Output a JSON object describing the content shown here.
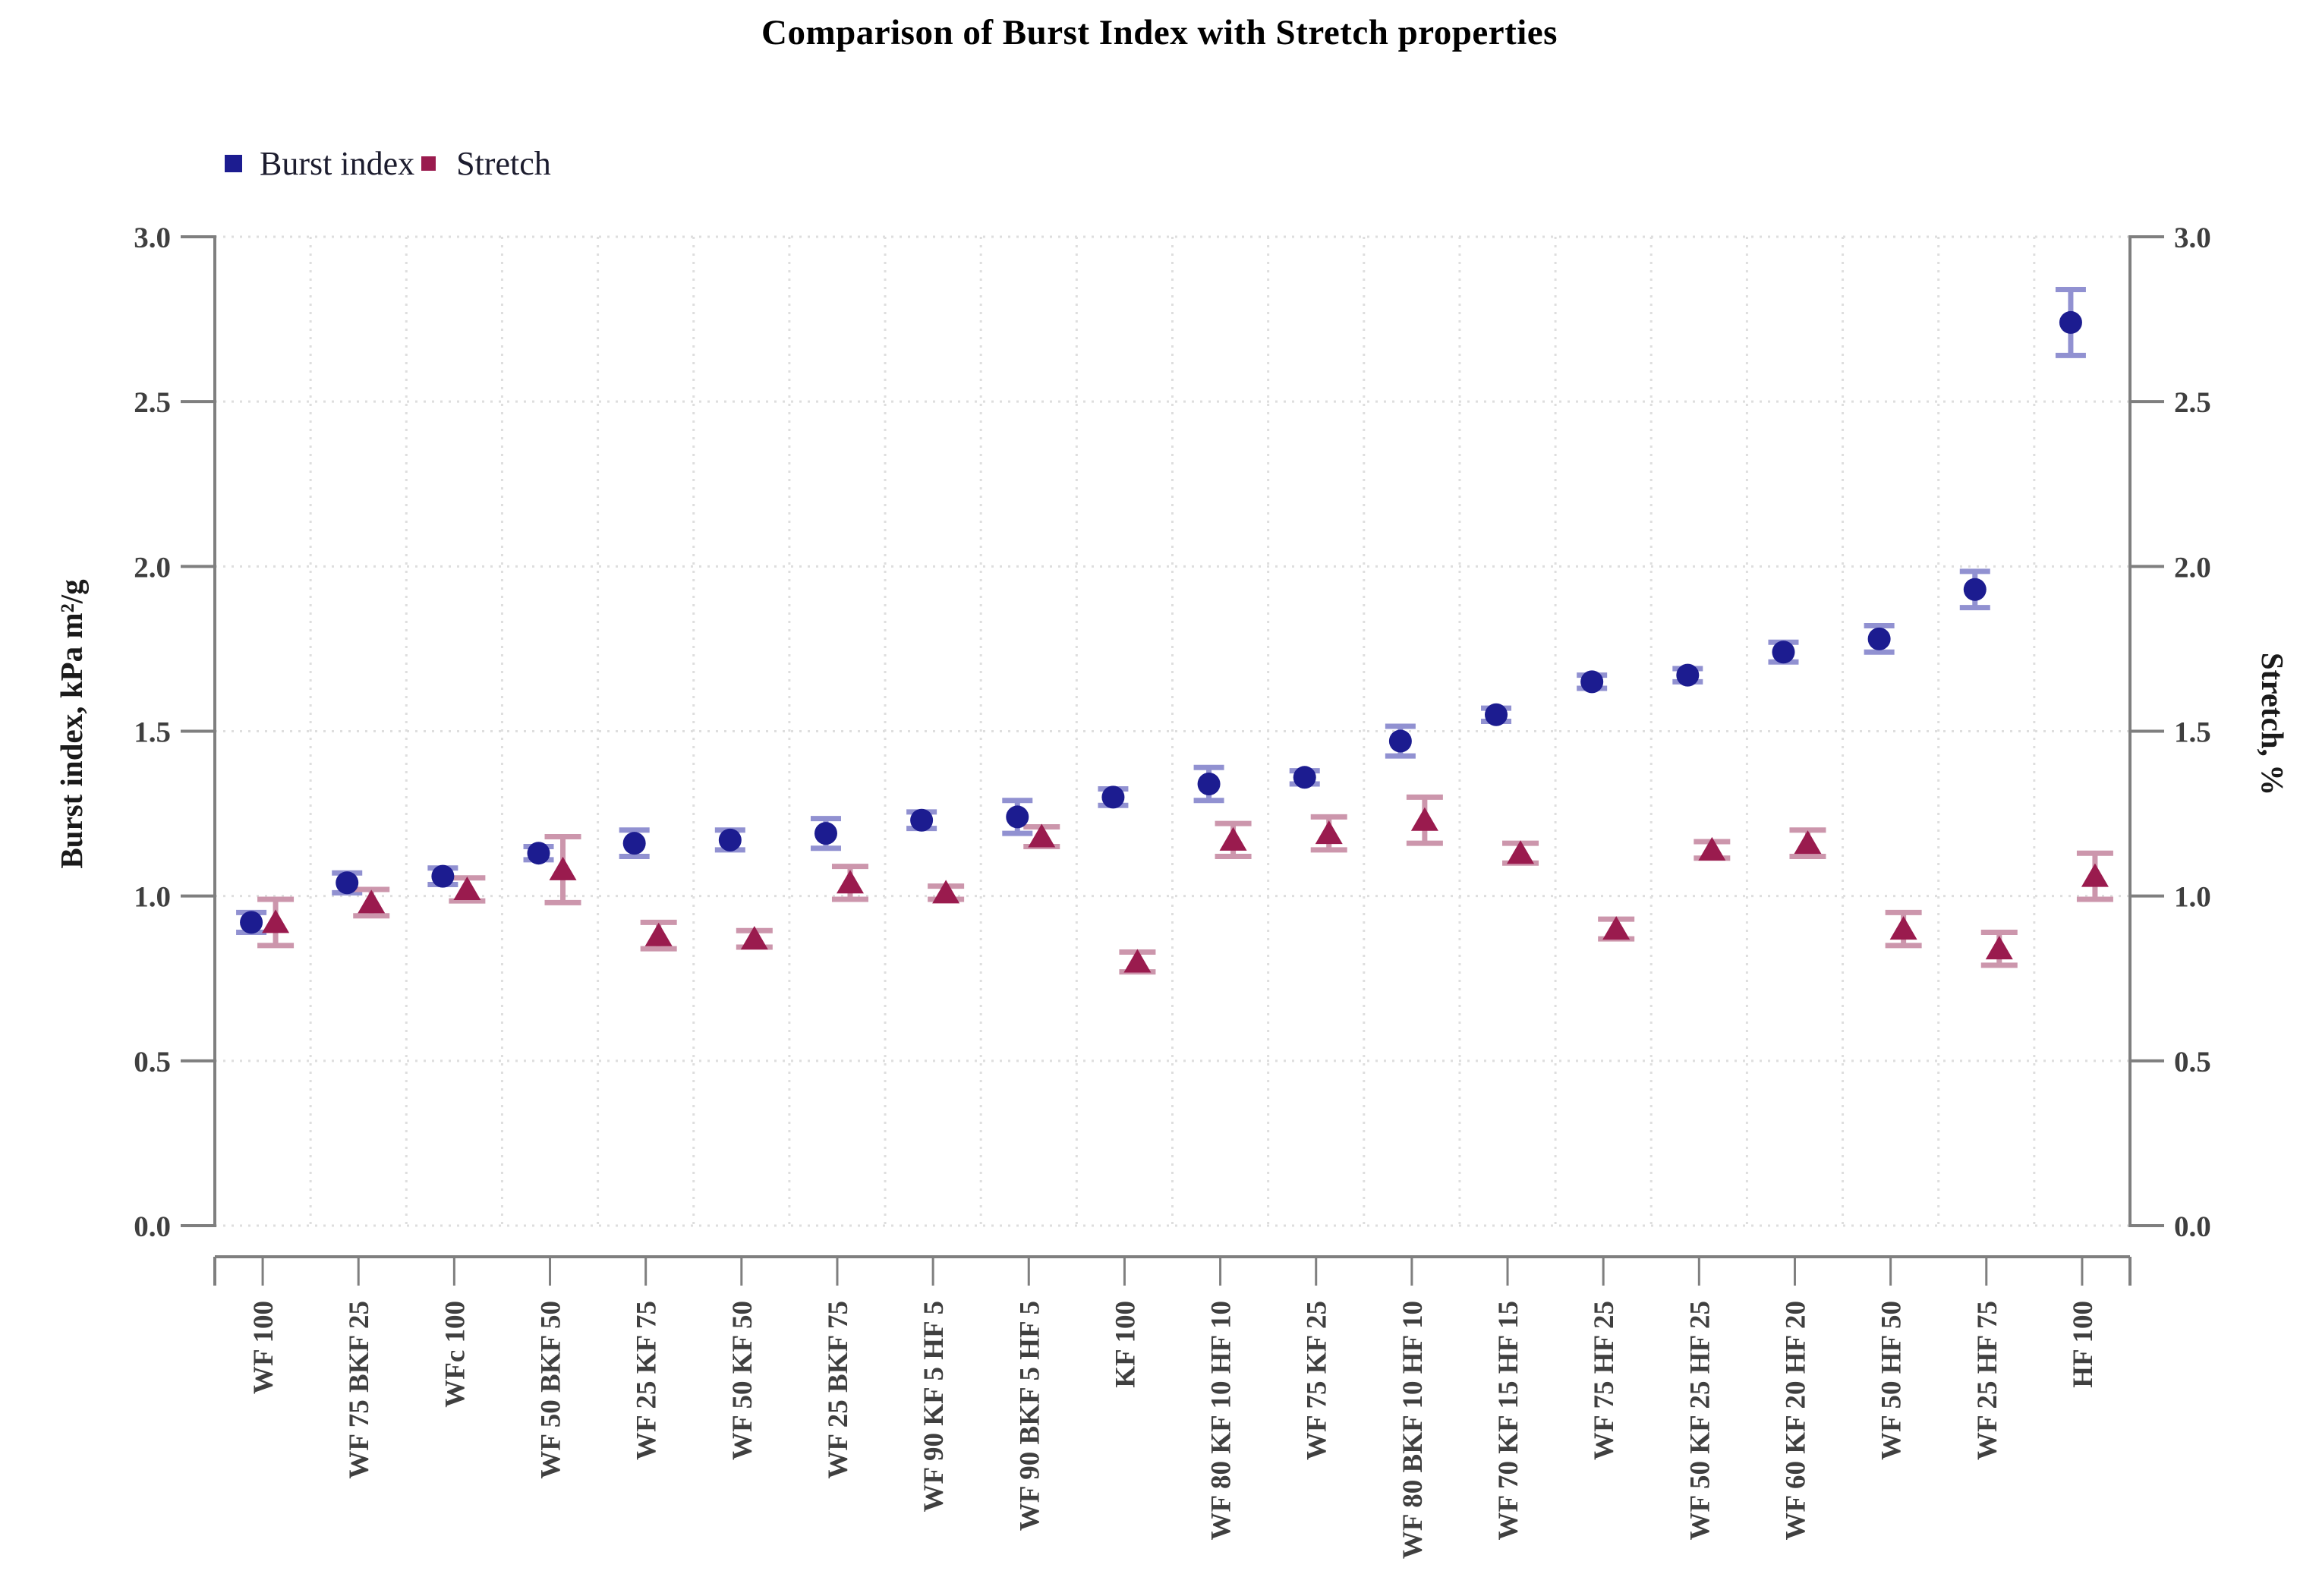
{
  "title": "Comparison of Burst Index with Stretch properties",
  "legend": [
    {
      "label": "Burst index",
      "color": "#1C1C90"
    },
    {
      "label": "Stretch",
      "color": "#9A1B4E"
    }
  ],
  "axes": {
    "left_label": "Burst index, kPa m²/g",
    "right_label": "Stretch, %",
    "tick_labels": [
      "0.0",
      "0.5",
      "1.0",
      "1.5",
      "2.0",
      "2.5",
      "3.0"
    ]
  },
  "chart_data": {
    "type": "scatter",
    "title": "Comparison of Burst Index with Stretch properties",
    "xlabel": "",
    "left_ylabel": "Burst index, kPa m²/g",
    "right_ylabel": "Stretch, %",
    "ylim": [
      0,
      3
    ],
    "ytick_step": 0.5,
    "grid": "dotted",
    "legend_position": "top-left-inside",
    "categories": [
      "WF 100",
      "WF 75 BKF 25",
      "WFc 100",
      "WF 50 BKF 50",
      "WF 25 KF 75",
      "WF 50 KF 50",
      "WF 25 BKF 75",
      "WF 90 KF 5 HF 5",
      "WF 90 BKF 5 HF 5",
      "KF 100",
      "WF 80 KF 10 HF 10",
      "WF 75 KF 25",
      "WF 80 BKF 10 HF 10",
      "WF 70 KF 15 HF 15",
      "WF 75 HF 25",
      "WF 50 KF 25 HF 25",
      "WF 60 KF 20 HF 20",
      "WF 50 HF 50",
      "WF 25 HF 75",
      "HF 100"
    ],
    "series": [
      {
        "name": "Burst index",
        "axis": "left",
        "marker": "circle",
        "color": "#1C1C90",
        "error_color": "#9191D1",
        "values": [
          0.92,
          1.04,
          1.06,
          1.13,
          1.16,
          1.17,
          1.19,
          1.23,
          1.24,
          1.3,
          1.34,
          1.36,
          1.47,
          1.55,
          1.65,
          1.67,
          1.74,
          1.78,
          1.93,
          2.74
        ],
        "errors": [
          0.03,
          0.03,
          0.025,
          0.02,
          0.04,
          0.03,
          0.045,
          0.025,
          0.05,
          0.025,
          0.05,
          0.02,
          0.045,
          0.02,
          0.02,
          0.02,
          0.03,
          0.04,
          0.055,
          0.1
        ]
      },
      {
        "name": "Stretch",
        "axis": "right",
        "marker": "triangle",
        "color": "#9A1B4E",
        "error_color": "#CC96AC",
        "values": [
          0.92,
          0.98,
          1.02,
          1.08,
          0.88,
          0.87,
          1.04,
          1.01,
          1.18,
          0.8,
          1.17,
          1.19,
          1.23,
          1.13,
          0.9,
          1.14,
          1.16,
          0.9,
          0.84,
          1.06
        ],
        "errors": [
          0.07,
          0.04,
          0.035,
          0.1,
          0.04,
          0.025,
          0.05,
          0.02,
          0.03,
          0.03,
          0.05,
          0.05,
          0.07,
          0.03,
          0.03,
          0.025,
          0.04,
          0.05,
          0.05,
          0.07
        ]
      }
    ]
  },
  "style": {
    "grid_color": "#DEDEDE",
    "axis_color": "#7F7F7F",
    "tick_text_color": "#3F3F3F"
  }
}
